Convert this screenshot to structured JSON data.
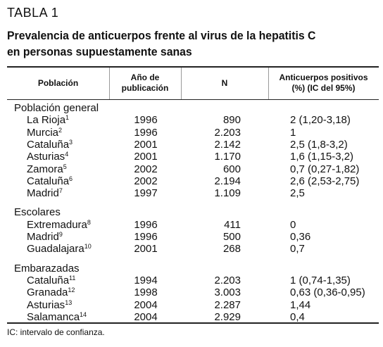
{
  "label": "TABLA 1",
  "title": [
    "Prevalencia de anticuerpos frente al virus de la hepatitis C",
    "en personas supuestamente sanas"
  ],
  "table": {
    "headers": [
      [
        "Población"
      ],
      [
        "Año de",
        "publicación"
      ],
      [
        "N"
      ],
      [
        "Anticuerpos positivos",
        "(%) (IC del 95%)"
      ]
    ],
    "groups": [
      {
        "name": "Población general",
        "rows": [
          [
            "La Rioja",
            "1",
            "1996",
            "890",
            "2 (1,20-3,18)"
          ],
          [
            "Murcia",
            "2",
            "1996",
            "2.203",
            "1"
          ],
          [
            "Cataluña",
            "3",
            "2001",
            "2.142",
            "2,5 (1,8-3,2)"
          ],
          [
            "Asturias",
            "4",
            "2001",
            "1.170",
            "1,6 (1,15-3,2)"
          ],
          [
            "Zamora",
            "5",
            "2002",
            "600",
            "0,7 (0,27-1,82)"
          ],
          [
            "Cataluña",
            "6",
            "2002",
            "2.194",
            "2,6 (2,53-2,75)"
          ],
          [
            "Madrid",
            "7",
            "1997",
            "1.109",
            "2,5"
          ]
        ]
      },
      {
        "name": "Escolares",
        "rows": [
          [
            "Extremadura",
            "8",
            "1996",
            "411",
            "0"
          ],
          [
            "Madrid",
            "9",
            "1996",
            "500",
            "0,36"
          ],
          [
            "Guadalajara",
            "10",
            "2001",
            "268",
            "0,7"
          ]
        ]
      },
      {
        "name": "Embarazadas",
        "rows": [
          [
            "Cataluña",
            "11",
            "1994",
            "2.203",
            "1 (0,74-1,35)"
          ],
          [
            "Granada",
            "12",
            "1998",
            "3.003",
            "0,63 (0,36-0,95)"
          ],
          [
            "Asturias",
            "13",
            "2004",
            "2.287",
            "1,44"
          ],
          [
            "Salamanca",
            "14",
            "2004",
            "2.929",
            "0,4"
          ]
        ]
      }
    ]
  },
  "footnote": "IC: intervalo de confianza."
}
